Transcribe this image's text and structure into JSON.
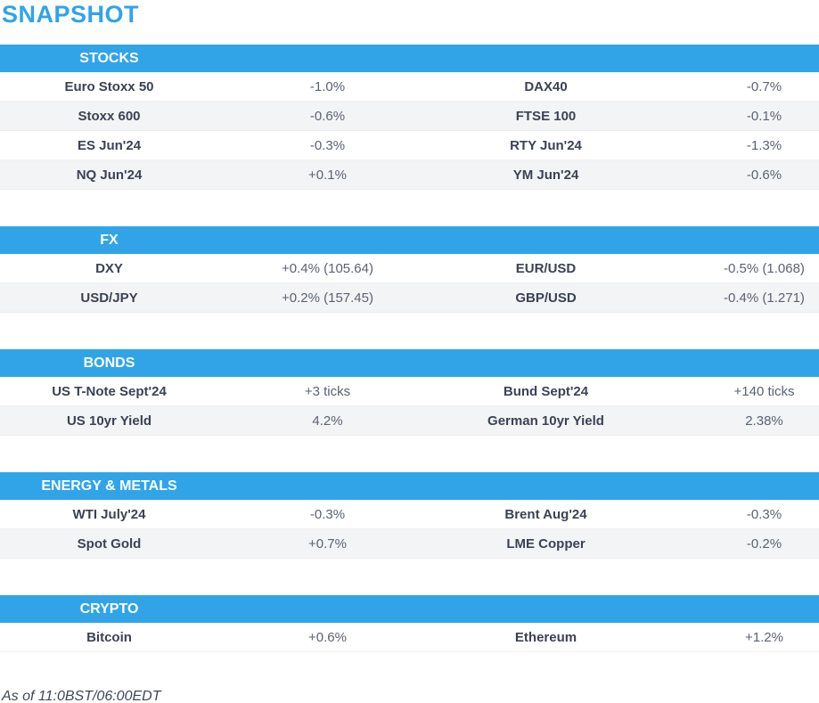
{
  "page": {
    "title": "SNAPSHOT",
    "footnote": "As of 11:0BST/06:00EDT"
  },
  "theme": {
    "accent_blue": "#31a4e8",
    "band_text": "#ffffff",
    "label_color": "#3b4254",
    "value_color": "#5a6273",
    "row_alt_bg": "#f3f4f5"
  },
  "sections": [
    {
      "name": "STOCKS",
      "rows": [
        {
          "l1": "Euro Stoxx 50",
          "v1": "-1.0%",
          "l2": "DAX40",
          "v2": "-0.7%"
        },
        {
          "l1": "Stoxx 600",
          "v1": "-0.6%",
          "l2": "FTSE 100",
          "v2": "-0.1%"
        },
        {
          "l1": "ES Jun'24",
          "v1": "-0.3%",
          "l2": "RTY Jun'24",
          "v2": "-1.3%"
        },
        {
          "l1": "NQ Jun'24",
          "v1": "+0.1%",
          "l2": "YM Jun'24",
          "v2": "-0.6%"
        }
      ]
    },
    {
      "name": "FX",
      "rows": [
        {
          "l1": "DXY",
          "v1": "+0.4% (105.64)",
          "l2": "EUR/USD",
          "v2": "-0.5% (1.068)"
        },
        {
          "l1": "USD/JPY",
          "v1": "+0.2% (157.45)",
          "l2": "GBP/USD",
          "v2": "-0.4% (1.271)"
        }
      ]
    },
    {
      "name": "BONDS",
      "rows": [
        {
          "l1": "US T-Note Sept'24",
          "v1": "+3 ticks",
          "l2": "Bund Sept'24",
          "v2": "+140 ticks"
        },
        {
          "l1": "US 10yr Yield",
          "v1": "4.2%",
          "l2": "German 10yr Yield",
          "v2": "2.38%"
        }
      ]
    },
    {
      "name": "ENERGY & METALS",
      "rows": [
        {
          "l1": "WTI July'24",
          "v1": "-0.3%",
          "l2": "Brent Aug'24",
          "v2": "-0.3%"
        },
        {
          "l1": "Spot Gold",
          "v1": "+0.7%",
          "l2": "LME Copper",
          "v2": "-0.2%"
        }
      ]
    },
    {
      "name": "CRYPTO",
      "rows": [
        {
          "l1": "Bitcoin",
          "v1": "+0.6%",
          "l2": "Ethereum",
          "v2": "+1.2%"
        }
      ]
    }
  ]
}
